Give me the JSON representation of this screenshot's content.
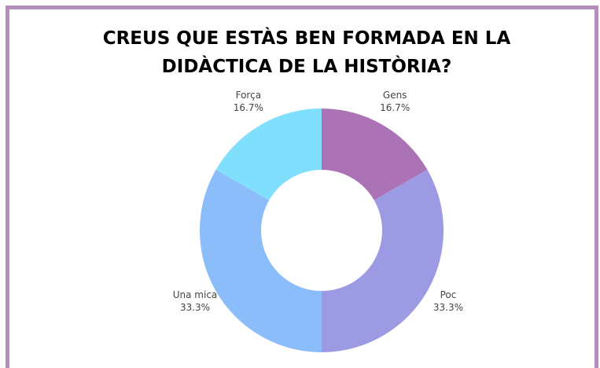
{
  "chart_data": {
    "type": "donut",
    "title": [
      "CREUS QUE ESTÀS BEN FORMADA EN LA",
      "DIDÀCTICA DE LA HISTÒRIA?"
    ],
    "categories": [
      "Gens",
      "Poc",
      "Una mica",
      "Força"
    ],
    "values": [
      16.7,
      33.3,
      33.3,
      16.7
    ],
    "value_labels": [
      "16.7%",
      "33.3%",
      "33.3%",
      "16.7%"
    ],
    "colors": [
      "#ab73b6",
      "#9d9ae4",
      "#8bbdfa",
      "#7fdffc"
    ]
  }
}
